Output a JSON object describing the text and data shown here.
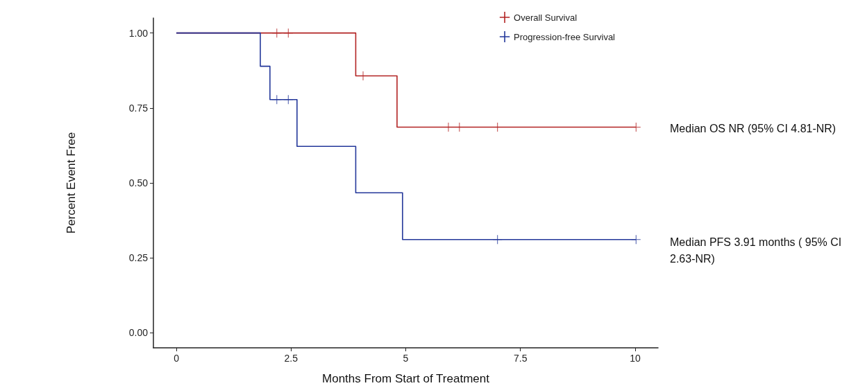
{
  "chart_data": {
    "type": "step",
    "xlabel": "Months From Start of Treatment",
    "ylabel": "Percent Event Free",
    "xlim": [
      -0.5,
      10.5
    ],
    "xticks": [
      0,
      2.5,
      5,
      7.5,
      10
    ],
    "ylim": [
      -0.05,
      1.05
    ],
    "yticks": [
      {
        "value": 0,
        "label": "0.00"
      },
      {
        "value": 0.25,
        "label": "0.25"
      },
      {
        "value": 0.5,
        "label": "0.50"
      },
      {
        "value": 0.75,
        "label": "0.75"
      },
      {
        "value": 1,
        "label": "1.00"
      }
    ],
    "grid": false,
    "legend": "top right",
    "series": [
      {
        "name": "Overall Survival",
        "color": "#b22222",
        "x": [
          0,
          3.91,
          4.81,
          10.02
        ],
        "values": [
          1,
          0.857,
          0.686,
          0.686
        ]
      },
      {
        "name": "Progression-free Survival",
        "color": "#23379a",
        "x": [
          0,
          1.83,
          2.04,
          2.63,
          3.91,
          4.93,
          10.02
        ],
        "values": [
          1,
          0.889,
          0.778,
          0.622,
          0.467,
          0.311,
          0.311
        ]
      },
      {
        "color": "#b22222",
        "type": "scatter",
        "marker": "cross",
        "x": [
          2.19,
          2.44,
          4.07,
          5.93,
          6.17,
          7.0,
          10.02
        ],
        "values": [
          1,
          1,
          0.857,
          0.686,
          0.686,
          0.686,
          0.686
        ]
      },
      {
        "color": "#23379a",
        "type": "scatter",
        "marker": "cross",
        "x": [
          2.19,
          2.44,
          7.0,
          10.02
        ],
        "values": [
          0.778,
          0.778,
          0.311,
          0.311
        ]
      }
    ],
    "annotations": [
      "Median OS NR (95% CI 4.81-NR)",
      "Median PFS 3.91 months ( 95% CI 2.63-NR)"
    ]
  }
}
